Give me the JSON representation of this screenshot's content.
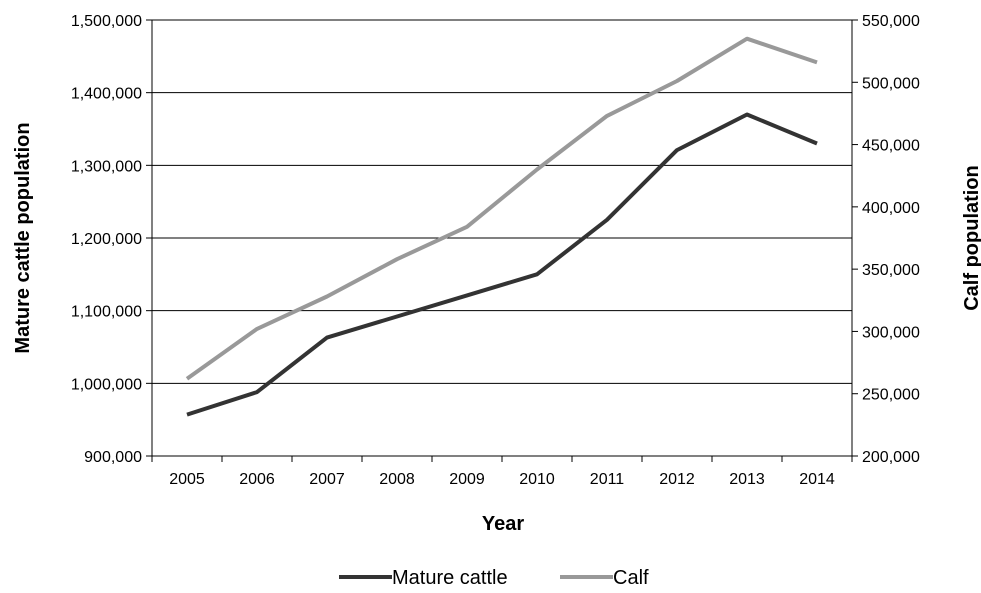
{
  "chart_data": {
    "type": "line",
    "title": "",
    "xlabel": "Year",
    "ylabel_left": "Mature cattle population",
    "ylabel_right": "Calf population",
    "categories": [
      "2005",
      "2006",
      "2007",
      "2008",
      "2009",
      "2010",
      "2011",
      "2012",
      "2013",
      "2014"
    ],
    "y_left": {
      "min": 900000,
      "max": 1500000,
      "ticks": [
        900000,
        1000000,
        1100000,
        1200000,
        1300000,
        1400000,
        1500000
      ],
      "tick_labels": [
        "900,000",
        "1,000,000",
        "1,100,000",
        "1,200,000",
        "1,300,000",
        "1,400,000",
        "1,500,000"
      ]
    },
    "y_right": {
      "min": 200000,
      "max": 550000,
      "ticks": [
        200000,
        250000,
        300000,
        350000,
        400000,
        450000,
        500000,
        550000
      ],
      "tick_labels": [
        "200,000",
        "250,000",
        "300,000",
        "350,000",
        "400,000",
        "450,000",
        "500,000",
        "550,000"
      ]
    },
    "grid": true,
    "legend_position": "bottom",
    "series": [
      {
        "name": "Mature cattle",
        "axis": "left",
        "color": "#333333",
        "values": [
          957000,
          988000,
          1063000,
          1092000,
          1121000,
          1150000,
          1225000,
          1321000,
          1370000,
          1330000
        ]
      },
      {
        "name": "Calf",
        "axis": "right",
        "color": "#999999",
        "values": [
          262000,
          302000,
          328000,
          358000,
          384000,
          430000,
          473000,
          501000,
          535000,
          516000
        ]
      }
    ]
  }
}
